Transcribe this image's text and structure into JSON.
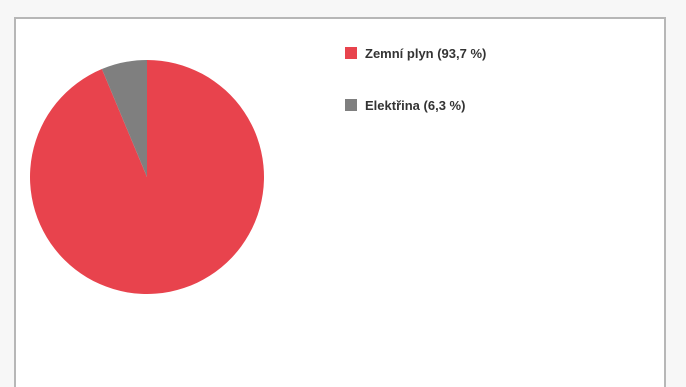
{
  "chart_data": {
    "type": "pie",
    "title": "",
    "start_angle_deg": 0,
    "direction": "clockwise",
    "slices": [
      {
        "label": "Zemní plyn",
        "value": 93.7,
        "color": "#e8434d",
        "legend_text": "Zemní plyn (93,7 %)"
      },
      {
        "label": "Elektřina",
        "value": 6.3,
        "color": "#7f7f7f",
        "legend_text": "Elektřina (6,3 %)"
      }
    ],
    "legend_position": "top-right"
  }
}
